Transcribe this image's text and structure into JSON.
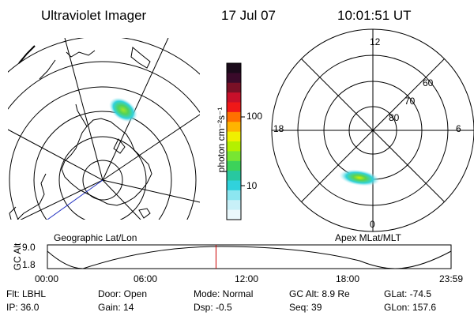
{
  "header": {
    "instrument": "Ultraviolet Imager",
    "date": "17 Jul 07",
    "time": "10:01:51 UT"
  },
  "left_panel": {
    "caption": "Geographic Lat/Lon"
  },
  "right_panel": {
    "caption": "Apex MLat/MLT",
    "mlt_labels": {
      "top": "12",
      "bottom": "0",
      "left": "18",
      "right": "6"
    },
    "mlat_labels": [
      "60",
      "70",
      "80"
    ]
  },
  "colorbar": {
    "label": "photon cm⁻²s⁻¹",
    "ticks": [
      "100",
      "10"
    ],
    "colors": [
      "#1a0a1a",
      "#3a0a2a",
      "#7a1026",
      "#c8102a",
      "#f01818",
      "#ff7000",
      "#ffb400",
      "#f0f000",
      "#b4f000",
      "#78e632",
      "#3cd25a",
      "#28c8a0",
      "#30d2dc",
      "#8ce6f0",
      "#c8f0f8",
      "#eaf8fc"
    ]
  },
  "altitude_strip": {
    "axis_label": "GC Alt",
    "y_ticks": [
      "9.0",
      "1.8"
    ],
    "x_ticks": [
      "00:00",
      "06:00",
      "12:00",
      "18:00",
      "23:59"
    ],
    "current_time_fraction": 0.4177
  },
  "status": {
    "flt": "Flt: LBHL",
    "door": "Door: Open",
    "mode": "Mode: Normal",
    "gc_alt": "GC Alt: 8.9 Re",
    "glat": "GLat: -74.5",
    "ip": "IP: 36.0",
    "gain": "Gain: 14",
    "dsp": "Dsp:    -0.5",
    "seq": "Seq: 39",
    "glon": "GLon: 157.6"
  },
  "colors": {
    "marker": "#cc0000",
    "coast_blue": "#2030c0",
    "teal": "#1e8c96"
  }
}
